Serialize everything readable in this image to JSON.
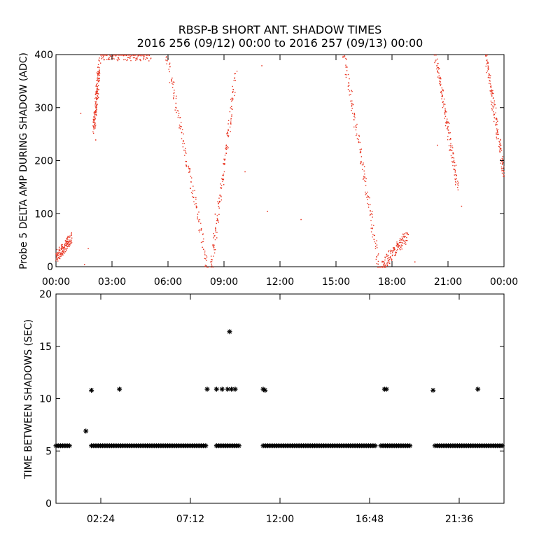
{
  "chart_data": [
    {
      "type": "scatter",
      "title": "RBSP-B SHORT ANT. SHADOW TIMES",
      "subtitle": "2016 256 (09/12) 00:00 to 2016 257 (09/13) 00:00",
      "xlabel": "",
      "ylabel": "Probe 5 DELTA AMP DURING SHADOW (ADC)",
      "xlim": [
        "00:00",
        "24:00"
      ],
      "ylim": [
        0,
        400
      ],
      "x_ticks": [
        "00:00",
        "03:00",
        "06:00",
        "09:00",
        "12:00",
        "15:00",
        "18:00",
        "21:00",
        "00:00"
      ],
      "y_ticks": [
        "0",
        "100",
        "200",
        "300",
        "400"
      ],
      "marker_color": "#e8321e",
      "segments": [
        {
          "x": [
            0.0,
            0.8
          ],
          "y": [
            20,
            55
          ]
        },
        {
          "x": [
            2.0,
            2.3
          ],
          "y": [
            260,
            380
          ]
        },
        {
          "x": [
            2.3,
            5.0
          ],
          "y": [
            400,
            400
          ]
        },
        {
          "x": [
            5.9,
            8.1
          ],
          "y": [
            400,
            0
          ]
        },
        {
          "x": [
            8.3,
            9.6
          ],
          "y": [
            0,
            360
          ]
        },
        {
          "x": [
            15.4,
            17.3
          ],
          "y": [
            400,
            0
          ]
        },
        {
          "x": [
            17.4,
            18.8
          ],
          "y": [
            0,
            60
          ]
        },
        {
          "x": [
            20.3,
            21.5
          ],
          "y": [
            400,
            150
          ]
        },
        {
          "x": [
            23.0,
            24.0
          ],
          "y": [
            400,
            170
          ]
        }
      ],
      "scattered_points": [
        {
          "x": 1.3,
          "y": 290
        },
        {
          "x": 1.7,
          "y": 35
        },
        {
          "x": 2.1,
          "y": 240
        },
        {
          "x": 8.5,
          "y": 100
        },
        {
          "x": 10.1,
          "y": 180
        },
        {
          "x": 11.3,
          "y": 105
        },
        {
          "x": 11.0,
          "y": 380
        },
        {
          "x": 13.1,
          "y": 90
        },
        {
          "x": 19.2,
          "y": 10
        },
        {
          "x": 20.4,
          "y": 230
        },
        {
          "x": 21.7,
          "y": 115
        },
        {
          "x": 1.5,
          "y": 5
        }
      ]
    },
    {
      "type": "scatter",
      "title": "",
      "xlabel": "",
      "ylabel": "TIME BETWEEN SHADOWS (SEC)",
      "xlim": [
        "00:00",
        "24:00"
      ],
      "ylim": [
        0,
        20
      ],
      "x_ticks": [
        "02:24",
        "07:12",
        "12:00",
        "16:48",
        "21:36"
      ],
      "y_ticks": [
        "0",
        "5",
        "10",
        "15",
        "20"
      ],
      "marker": "asterisk",
      "marker_color": "#000000",
      "baseline_value": 5.5,
      "baseline_ranges": [
        [
          0.0,
          0.8
        ],
        [
          1.9,
          8.1
        ],
        [
          8.6,
          9.9
        ],
        [
          11.1,
          17.1
        ],
        [
          17.4,
          19.0
        ],
        [
          20.3,
          24.0
        ]
      ],
      "points": [
        {
          "x": 1.6,
          "y": 6.9
        },
        {
          "x": 1.9,
          "y": 10.8
        },
        {
          "x": 3.4,
          "y": 10.9
        },
        {
          "x": 8.1,
          "y": 10.9
        },
        {
          "x": 8.6,
          "y": 10.9
        },
        {
          "x": 8.9,
          "y": 10.9
        },
        {
          "x": 9.2,
          "y": 10.9
        },
        {
          "x": 9.4,
          "y": 10.9
        },
        {
          "x": 9.6,
          "y": 10.9
        },
        {
          "x": 9.3,
          "y": 16.4
        },
        {
          "x": 11.1,
          "y": 10.9
        },
        {
          "x": 11.2,
          "y": 10.8
        },
        {
          "x": 17.6,
          "y": 10.9
        },
        {
          "x": 17.7,
          "y": 10.9
        },
        {
          "x": 20.2,
          "y": 10.8
        },
        {
          "x": 22.6,
          "y": 10.9
        }
      ]
    }
  ]
}
